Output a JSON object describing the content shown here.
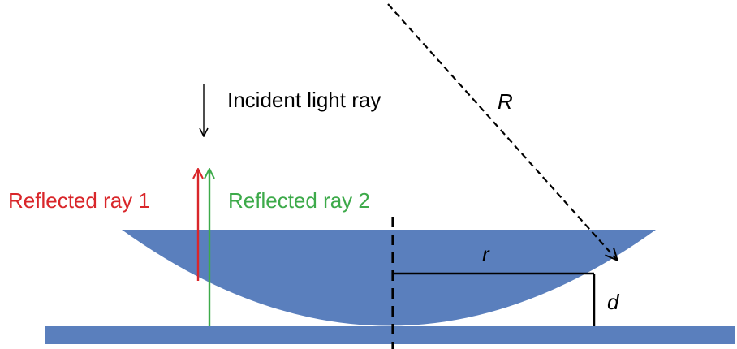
{
  "labels": {
    "incident": "Incident light ray",
    "reflected1": "Reflected ray 1",
    "reflected2": "Reflected ray 2",
    "big_radius": "R",
    "small_radius": "r",
    "gap": "d"
  },
  "colors": {
    "glass": "#5a7fbd",
    "reflected1": "#d9262a",
    "reflected2": "#3daa4a",
    "line": "#000000",
    "background": "#ffffff"
  }
}
